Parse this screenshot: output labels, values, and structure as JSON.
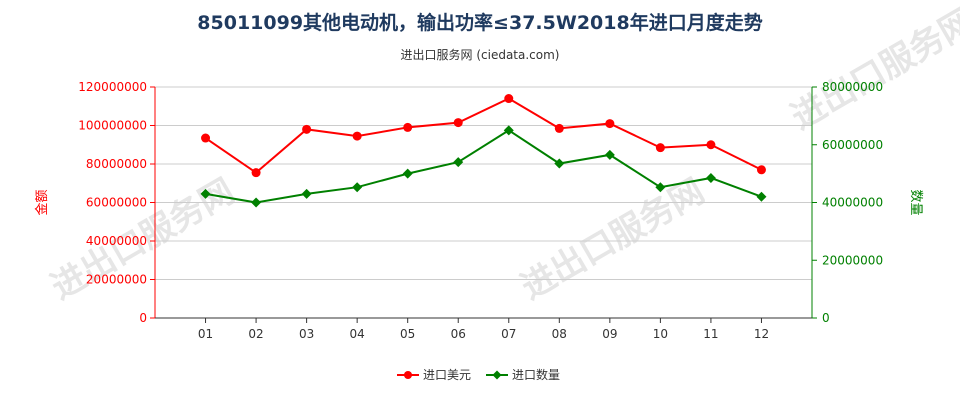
{
  "header": {
    "title": "85011099其他电动机，输出功率≤37.5W2018年进口月度走势",
    "subtitle": "进出口服务网 (ciedata.com)"
  },
  "watermark": "进出口服务网",
  "colors": {
    "amount": "#ff0000",
    "quantity": "#008000",
    "axis": "#333333",
    "grid": "#cccccc"
  },
  "chart_data": {
    "type": "line",
    "x": [
      "01",
      "02",
      "03",
      "04",
      "05",
      "06",
      "07",
      "08",
      "09",
      "10",
      "11",
      "12"
    ],
    "y_left": {
      "label": "金额",
      "ticks": [
        "0",
        "20000000",
        "40000000",
        "60000000",
        "80000000",
        "100000000",
        "120000000"
      ],
      "range": [
        0,
        120000000
      ]
    },
    "y_right": {
      "label": "数量",
      "ticks": [
        "0",
        "20000000",
        "40000000",
        "60000000",
        "80000000"
      ],
      "range": [
        0,
        80000000
      ]
    },
    "series": [
      {
        "name": "进口美元",
        "axis": "left",
        "color": "#ff0000",
        "values": [
          93500000,
          75500000,
          98000000,
          94500000,
          99000000,
          101500000,
          114000000,
          98500000,
          101000000,
          88500000,
          90000000,
          77000000
        ]
      },
      {
        "name": "进口数量",
        "axis": "right",
        "color": "#008000",
        "values": [
          43000000,
          40000000,
          43000000,
          45300000,
          50000000,
          54000000,
          65000000,
          53500000,
          56500000,
          45300000,
          48500000,
          42000000
        ]
      }
    ],
    "grid": true,
    "legend": "bottom-center"
  }
}
